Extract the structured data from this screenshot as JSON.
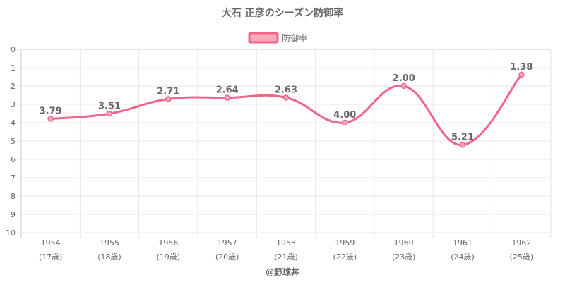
{
  "chart_data": {
    "type": "line",
    "title": "大石 正彦のシーズン防御率",
    "legend": {
      "label": "防御率",
      "placement": "top-center"
    },
    "categories": [
      "1954",
      "1955",
      "1956",
      "1957",
      "1958",
      "1959",
      "1960",
      "1961",
      "1962"
    ],
    "sub_labels": [
      "(17歳)",
      "(18歳)",
      "(19歳)",
      "(20歳)",
      "(21歳)",
      "(22歳)",
      "(23歳)",
      "(24歳)",
      "(25歳)"
    ],
    "series": [
      {
        "name": "防御率",
        "values": [
          3.79,
          3.51,
          2.71,
          2.64,
          2.63,
          4.0,
          2.0,
          5.21,
          1.38
        ]
      }
    ],
    "data_labels": [
      "3.79",
      "3.51",
      "2.71",
      "2.64",
      "2.63",
      "4.00",
      "2.00",
      "5.21",
      "1.38"
    ],
    "ylim": [
      0,
      10
    ],
    "y_reversed": true,
    "y_ticks": [
      "0",
      "1",
      "2",
      "3",
      "4",
      "5",
      "6",
      "7",
      "8",
      "9",
      "10"
    ],
    "xlabel": "@野球丼",
    "ylabel": "",
    "grid": true,
    "colors": {
      "line": "#f06488",
      "legend_fill": "#f7a8bd",
      "grid": "#e6e6e6",
      "text": "#666666"
    }
  }
}
